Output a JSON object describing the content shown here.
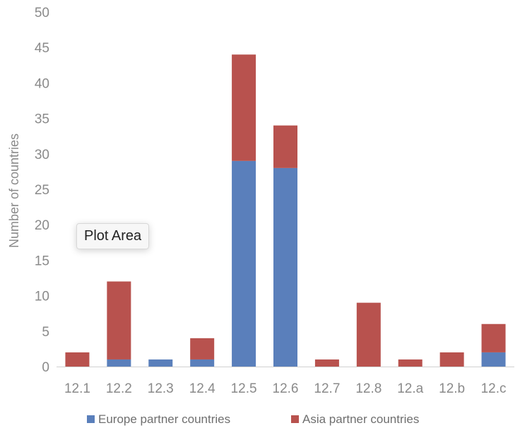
{
  "chart_data": {
    "type": "bar",
    "stacked": true,
    "categories": [
      "12.1",
      "12.2",
      "12.3",
      "12.4",
      "12.5",
      "12.6",
      "12.7",
      "12.8",
      "12.a",
      "12.b",
      "12.c"
    ],
    "series": [
      {
        "name": "Europe partner countries",
        "color": "#5a7fbb",
        "values": [
          0,
          1,
          1,
          1,
          29,
          28,
          0,
          0,
          0,
          0,
          2
        ]
      },
      {
        "name": "Asia partner countries",
        "color": "#b8524e",
        "values": [
          2,
          11,
          0,
          3,
          15,
          6,
          1,
          9,
          1,
          2,
          4
        ]
      }
    ],
    "ylabel": "Number of countries",
    "ylim": [
      0,
      50
    ],
    "yticks": [
      0,
      5,
      10,
      15,
      20,
      25,
      30,
      35,
      40,
      45,
      50
    ],
    "grid": false,
    "legend": "bottom"
  },
  "tooltip": {
    "text": "Plot Area"
  }
}
